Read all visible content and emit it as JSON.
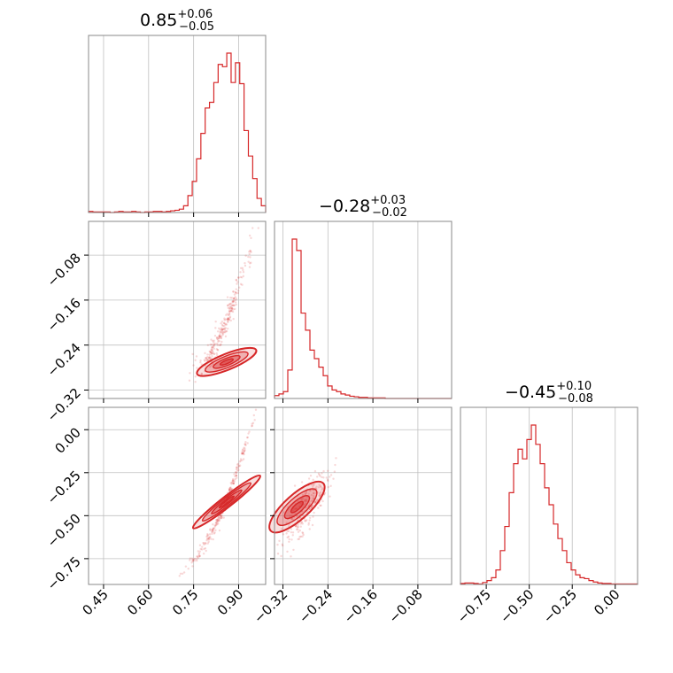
{
  "chart_data": {
    "type": "corner",
    "color": "#d62728",
    "grid": true,
    "parameters": [
      {
        "median": "0.85",
        "upper": "+0.06",
        "lower": "−0.05",
        "range": [
          0.4,
          0.99
        ],
        "ticks": [
          0.45,
          0.6,
          0.75,
          0.9
        ],
        "tick_labels": [
          "0.45",
          "0.60",
          "0.75",
          "0.90"
        ]
      },
      {
        "median": "−0.28",
        "upper": "+0.03",
        "lower": "−0.02",
        "range": [
          -0.335,
          -0.02
        ],
        "ticks": [
          -0.32,
          -0.24,
          -0.16,
          -0.08
        ],
        "tick_labels": [
          "−0.32",
          "−0.24",
          "−0.16",
          "−0.08"
        ]
      },
      {
        "median": "−0.45",
        "upper": "+0.10",
        "lower": "−0.08",
        "range": [
          -0.9,
          0.13
        ],
        "ticks": [
          -0.75,
          -0.5,
          -0.25,
          0.0
        ],
        "tick_labels": [
          "−0.75",
          "−0.50",
          "−0.25",
          "0.00"
        ]
      }
    ],
    "histograms": [
      {
        "bins_lo": 0.4,
        "bins_hi": 0.99,
        "counts": [
          2,
          1,
          1,
          1,
          1,
          0,
          1,
          2,
          1,
          1,
          2,
          1,
          0,
          1,
          1,
          2,
          2,
          1,
          2,
          3,
          4,
          6,
          12,
          30,
          55,
          95,
          140,
          185,
          195,
          230,
          262,
          258,
          282,
          230,
          265,
          228,
          145,
          100,
          60,
          25,
          12
        ]
      },
      {
        "bins_lo": -0.335,
        "bins_hi": -0.02,
        "counts": [
          5,
          8,
          12,
          50,
          280,
          260,
          150,
          120,
          85,
          70,
          55,
          40,
          22,
          15,
          12,
          8,
          6,
          4,
          3,
          2,
          2,
          1,
          1,
          1,
          1,
          0,
          0,
          0,
          0,
          0,
          0,
          0,
          0,
          0,
          0,
          0,
          0,
          0,
          0,
          0
        ]
      },
      {
        "bins_lo": -0.9,
        "bins_hi": 0.13,
        "counts": [
          2,
          3,
          3,
          2,
          1,
          4,
          8,
          14,
          30,
          70,
          120,
          190,
          250,
          280,
          260,
          300,
          330,
          290,
          250,
          200,
          165,
          125,
          95,
          70,
          45,
          30,
          20,
          14,
          12,
          8,
          5,
          3,
          2,
          2,
          1,
          1,
          1,
          1,
          1,
          1
        ]
      }
    ]
  }
}
